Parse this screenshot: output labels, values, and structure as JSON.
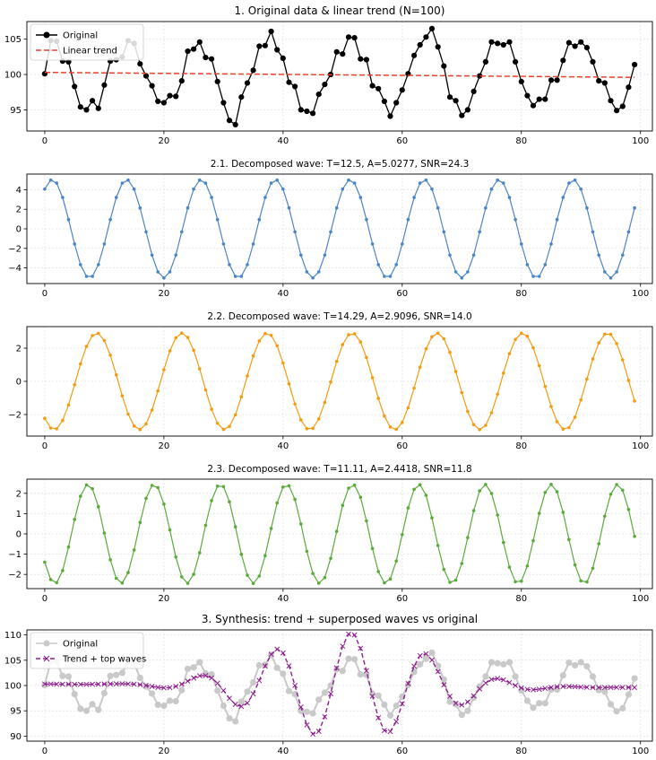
{
  "chart_data": [
    {
      "type": "line",
      "title": "1. Original data & linear trend (N=100)",
      "xlim": [
        -3,
        102
      ],
      "ylim": [
        92,
        107.5
      ],
      "xticks": [
        0,
        20,
        40,
        60,
        80,
        100
      ],
      "yticks": [
        95,
        100,
        105
      ],
      "grid": true,
      "legend_position": "top-left",
      "series": [
        {
          "name": "Original",
          "color": "#000000",
          "style": "line-dot",
          "values": [
            100.1,
            104.8,
            104.7,
            101.9,
            101.8,
            98.3,
            95.4,
            95.0,
            96.3,
            95.2,
            98.5,
            101.9,
            102.1,
            102.5,
            104.8,
            104.4,
            101.5,
            99.8,
            98.4,
            96.2,
            96.0,
            97.0,
            96.9,
            99.1,
            103.3,
            103.6,
            104.6,
            102.4,
            102.2,
            99.0,
            96.0,
            93.5,
            92.9,
            96.8,
            98.8,
            100.6,
            104.0,
            104.1,
            106.1,
            103.5,
            102.3,
            98.9,
            98.3,
            95.0,
            94.8,
            94.5,
            97.2,
            98.6,
            100.0,
            103.2,
            102.9,
            105.3,
            105.2,
            102.2,
            102.1,
            98.4,
            98.0,
            96.2,
            94.1,
            96.0,
            97.8,
            100.1,
            102.7,
            104.2,
            105.3,
            106.5,
            103.9,
            101.2,
            96.8,
            96.3,
            94.2,
            95.0,
            97.6,
            99.8,
            101.8,
            104.6,
            104.4,
            104.2,
            104.6,
            101.8,
            99.0,
            97.0,
            95.6,
            96.5,
            96.5,
            99.2,
            99.2,
            102.0,
            104.5,
            104.0,
            104.6,
            103.8,
            101.8,
            99.1,
            98.8,
            96.3,
            94.9,
            95.5,
            98.2,
            101.4
          ]
        },
        {
          "name": "Linear trend",
          "color": "#e8432e",
          "style": "dashed",
          "values": [
            100.3,
            99.6
          ]
        }
      ]
    },
    {
      "type": "line",
      "title": "2.1. Decomposed wave: T=12.5, A=5.0277, SNR=24.3",
      "period": 12.5,
      "amplitude": 5.0277,
      "phase_deg": 54,
      "color": "#4a86c7",
      "xlim": [
        -3,
        102
      ],
      "ylim": [
        -5.6,
        5.6
      ],
      "xticks": [
        0,
        20,
        40,
        60,
        80,
        100
      ],
      "yticks": [
        4,
        2,
        0,
        -2,
        -4
      ],
      "grid": true
    },
    {
      "type": "line",
      "title": "2.2. Decomposed wave: T=14.29, A=2.9096, SNR=14.0",
      "period": 14.29,
      "amplitude": 2.9096,
      "phase_deg": 230,
      "color": "#f39c12",
      "xlim": [
        -3,
        102
      ],
      "ylim": [
        -3.3,
        3.3
      ],
      "xticks": [
        0,
        20,
        40,
        60,
        80,
        100
      ],
      "yticks": [
        2,
        0,
        -2
      ],
      "grid": true
    },
    {
      "type": "line",
      "title": "2.3. Decomposed wave: T=11.11, A=2.4418, SNR=11.8",
      "period": 11.11,
      "amplitude": 2.4418,
      "phase_deg": 215,
      "color": "#5aab3c",
      "xlim": [
        -3,
        102
      ],
      "ylim": [
        -2.7,
        2.7
      ],
      "xticks": [
        0,
        20,
        40,
        60,
        80,
        100
      ],
      "yticks": [
        2,
        1,
        0,
        -1,
        -2
      ],
      "grid": true
    },
    {
      "type": "line",
      "title": "3. Synthesis: trend + superposed waves vs original",
      "xlim": [
        -3,
        102
      ],
      "ylim": [
        89,
        111
      ],
      "xticks": [
        0,
        20,
        40,
        60,
        80,
        100
      ],
      "yticks": [
        90,
        95,
        100,
        105,
        110
      ],
      "grid": true,
      "legend_position": "top-left",
      "series": [
        {
          "name": "Original",
          "color": "#c9c9c9",
          "style": "line-dot"
        },
        {
          "name": "Trend + top waves",
          "color": "#8e1f8e",
          "style": "dashed-x"
        }
      ]
    }
  ]
}
